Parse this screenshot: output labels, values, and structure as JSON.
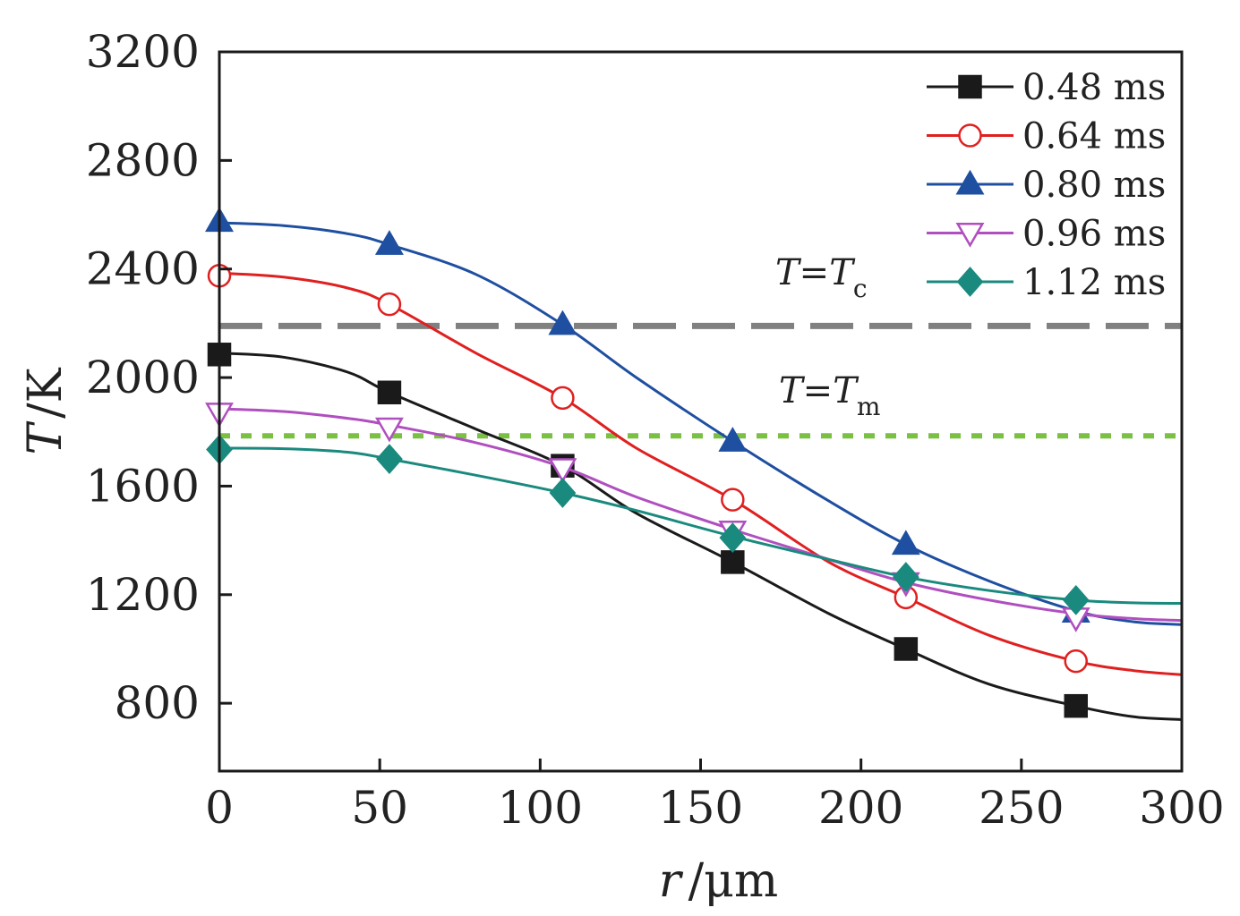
{
  "chart_data": {
    "type": "line",
    "xlabel": {
      "var": "r",
      "unit": "/μm"
    },
    "ylabel": {
      "var": "T",
      "unit": "/K"
    },
    "xlim": [
      0,
      300
    ],
    "ylim": [
      550,
      3200
    ],
    "x_ticks": [
      0,
      50,
      100,
      150,
      200,
      250,
      300
    ],
    "y_ticks": [
      800,
      1200,
      1600,
      2000,
      2400,
      2800,
      3200
    ],
    "legend_position": "top-right",
    "series": [
      {
        "name": "0.48 ms",
        "color": "#1a1a1a",
        "marker": "square",
        "line": [
          [
            0,
            2090
          ],
          [
            20,
            2075
          ],
          [
            40,
            2020
          ],
          [
            53,
            1945
          ],
          [
            80,
            1810
          ],
          [
            107,
            1675
          ],
          [
            130,
            1500
          ],
          [
            160,
            1320
          ],
          [
            190,
            1130
          ],
          [
            214,
            1000
          ],
          [
            240,
            870
          ],
          [
            267,
            790
          ],
          [
            285,
            750
          ],
          [
            300,
            740
          ]
        ],
        "markers": [
          [
            0,
            2085
          ],
          [
            53,
            1945
          ],
          [
            107,
            1675
          ],
          [
            160,
            1320
          ],
          [
            214,
            1000
          ],
          [
            267,
            790
          ]
        ]
      },
      {
        "name": "0.64 ms",
        "color": "#e02020",
        "marker": "circle-open",
        "line": [
          [
            0,
            2385
          ],
          [
            20,
            2370
          ],
          [
            40,
            2330
          ],
          [
            53,
            2270
          ],
          [
            80,
            2090
          ],
          [
            107,
            1925
          ],
          [
            130,
            1740
          ],
          [
            160,
            1550
          ],
          [
            190,
            1320
          ],
          [
            214,
            1190
          ],
          [
            240,
            1050
          ],
          [
            267,
            955
          ],
          [
            285,
            920
          ],
          [
            300,
            905
          ]
        ],
        "markers": [
          [
            0,
            2375
          ],
          [
            53,
            2270
          ],
          [
            107,
            1925
          ],
          [
            160,
            1550
          ],
          [
            214,
            1190
          ],
          [
            267,
            955
          ]
        ]
      },
      {
        "name": "0.80 ms",
        "color": "#1f4fa0",
        "marker": "triangle-up",
        "line": [
          [
            0,
            2570
          ],
          [
            20,
            2560
          ],
          [
            40,
            2530
          ],
          [
            53,
            2490
          ],
          [
            80,
            2380
          ],
          [
            107,
            2195
          ],
          [
            130,
            2000
          ],
          [
            160,
            1765
          ],
          [
            190,
            1545
          ],
          [
            214,
            1385
          ],
          [
            240,
            1250
          ],
          [
            267,
            1140
          ],
          [
            285,
            1100
          ],
          [
            300,
            1090
          ]
        ],
        "markers": [
          [
            0,
            2575
          ],
          [
            53,
            2490
          ],
          [
            107,
            2195
          ],
          [
            160,
            1765
          ],
          [
            214,
            1385
          ],
          [
            267,
            1135
          ]
        ]
      },
      {
        "name": "0.96 ms",
        "color": "#b04fbf",
        "marker": "triangle-down-open",
        "line": [
          [
            0,
            1885
          ],
          [
            20,
            1875
          ],
          [
            40,
            1850
          ],
          [
            53,
            1825
          ],
          [
            80,
            1760
          ],
          [
            107,
            1670
          ],
          [
            130,
            1560
          ],
          [
            160,
            1440
          ],
          [
            190,
            1330
          ],
          [
            214,
            1245
          ],
          [
            240,
            1180
          ],
          [
            267,
            1130
          ],
          [
            285,
            1112
          ],
          [
            300,
            1105
          ]
        ],
        "markers": [
          [
            0,
            1870
          ],
          [
            53,
            1815
          ],
          [
            107,
            1665
          ],
          [
            160,
            1435
          ],
          [
            214,
            1245
          ],
          [
            267,
            1115
          ]
        ]
      },
      {
        "name": "1.12 ms",
        "color": "#1a8a7e",
        "marker": "diamond",
        "line": [
          [
            0,
            1740
          ],
          [
            20,
            1738
          ],
          [
            40,
            1725
          ],
          [
            53,
            1700
          ],
          [
            80,
            1640
          ],
          [
            107,
            1575
          ],
          [
            130,
            1510
          ],
          [
            160,
            1415
          ],
          [
            190,
            1330
          ],
          [
            214,
            1265
          ],
          [
            240,
            1215
          ],
          [
            267,
            1180
          ],
          [
            285,
            1170
          ],
          [
            300,
            1168
          ]
        ],
        "markers": [
          [
            0,
            1735
          ],
          [
            53,
            1700
          ],
          [
            107,
            1575
          ],
          [
            160,
            1410
          ],
          [
            214,
            1265
          ],
          [
            267,
            1180
          ]
        ]
      }
    ],
    "reference_lines": [
      {
        "id": "tc",
        "y": 2190,
        "label_var": "T=T",
        "label_sub": "c",
        "color": "#808080",
        "style": "long-dash"
      },
      {
        "id": "tm",
        "y": 1785,
        "label_var": "T=T",
        "label_sub": "m",
        "color": "#7ac143",
        "style": "dotted"
      }
    ]
  }
}
